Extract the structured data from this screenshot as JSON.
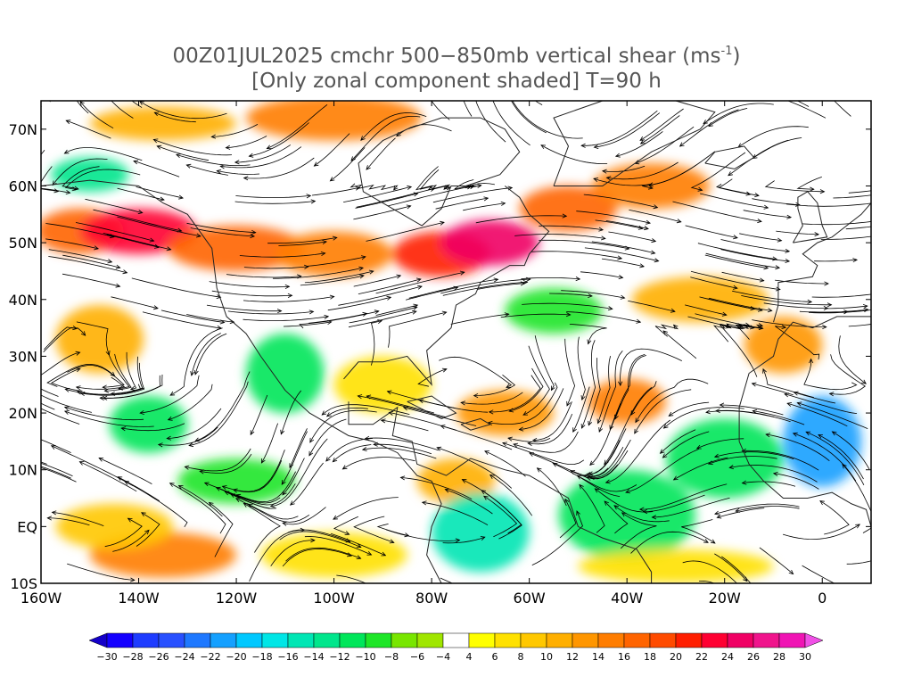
{
  "title": {
    "line1": "00Z01JUL2025 cmchr 500−850mb vertical shear (ms",
    "line1_sup": "-1",
    "line1_end": ")",
    "line2": "[Only zonal component shaded] T=90 h"
  },
  "lat_labels": [
    "70N",
    "60N",
    "50N",
    "40N",
    "30N",
    "20N",
    "10N",
    "EQ",
    "10S"
  ],
  "lat_values": [
    70,
    60,
    50,
    40,
    30,
    20,
    10,
    0,
    -10
  ],
  "lon_labels": [
    "160W",
    "140W",
    "120W",
    "100W",
    "80W",
    "60W",
    "40W",
    "20W",
    "0"
  ],
  "lon_values": [
    -160,
    -140,
    -120,
    -100,
    -80,
    -60,
    -40,
    -20,
    0
  ],
  "map_extent": {
    "lon_min": -160,
    "lon_max": 10,
    "lat_min": -10,
    "lat_max": 75
  },
  "colorbar": {
    "labels": [
      "−30",
      "−28",
      "−26",
      "−24",
      "−22",
      "−20",
      "−18",
      "−16",
      "−14",
      "−12",
      "−10",
      "−8",
      "−6",
      "−4",
      "4",
      "6",
      "8",
      "10",
      "12",
      "14",
      "16",
      "18",
      "20",
      "22",
      "24",
      "26",
      "28",
      "30"
    ],
    "colors": [
      "#1400ff",
      "#1e3cff",
      "#2850ff",
      "#1e78ff",
      "#14a0ff",
      "#00c8ff",
      "#00e6e6",
      "#00e6b4",
      "#00e68c",
      "#00e65a",
      "#1ee628",
      "#78e600",
      "#a0e600",
      "#ffffff",
      "#ffff00",
      "#ffe100",
      "#ffc800",
      "#ffaf00",
      "#ff9600",
      "#ff7d00",
      "#ff6400",
      "#ff4b00",
      "#ff1e00",
      "#ff0032",
      "#f00064",
      "#f0148c",
      "#f014b4"
    ],
    "low_color": "#1400c8",
    "high_color": "#f050e6"
  },
  "shading_regions": [
    {
      "lon": -152,
      "lat": 52,
      "rx": 9,
      "ry": 4,
      "value": 18
    },
    {
      "lon": -140,
      "lat": 52,
      "rx": 12,
      "ry": 4,
      "value": 24
    },
    {
      "lon": -120,
      "lat": 49,
      "rx": 14,
      "ry": 4,
      "value": 18
    },
    {
      "lon": -100,
      "lat": 48,
      "rx": 12,
      "ry": 4,
      "value": 16
    },
    {
      "lon": -78,
      "lat": 48,
      "rx": 10,
      "ry": 4,
      "value": 22
    },
    {
      "lon": -68,
      "lat": 50,
      "rx": 10,
      "ry": 4,
      "value": 26
    },
    {
      "lon": -52,
      "lat": 56,
      "rx": 10,
      "ry": 4,
      "value": 18
    },
    {
      "lon": -35,
      "lat": 60,
      "rx": 12,
      "ry": 4,
      "value": 16
    },
    {
      "lon": -100,
      "lat": 72,
      "rx": 18,
      "ry": 4,
      "value": 16
    },
    {
      "lon": -135,
      "lat": 71,
      "rx": 15,
      "ry": 3,
      "value": 12
    },
    {
      "lon": -150,
      "lat": 62,
      "rx": 8,
      "ry": 3,
      "value": -12
    },
    {
      "lon": -148,
      "lat": 33,
      "rx": 9,
      "ry": 6,
      "value": 12
    },
    {
      "lon": -138,
      "lat": 18,
      "rx": 8,
      "ry": 5,
      "value": -10
    },
    {
      "lon": -110,
      "lat": 27,
      "rx": 8,
      "ry": 7,
      "value": -10
    },
    {
      "lon": -65,
      "lat": 20,
      "rx": 10,
      "ry": 4,
      "value": 14
    },
    {
      "lon": -40,
      "lat": 22,
      "rx": 8,
      "ry": 4,
      "value": 16
    },
    {
      "lon": -25,
      "lat": 40,
      "rx": 14,
      "ry": 4,
      "value": 12
    },
    {
      "lon": -8,
      "lat": 32,
      "rx": 8,
      "ry": 5,
      "value": 14
    },
    {
      "lon": 0,
      "lat": 15,
      "rx": 8,
      "ry": 8,
      "value": -20
    },
    {
      "lon": -20,
      "lat": 12,
      "rx": 12,
      "ry": 7,
      "value": -10
    },
    {
      "lon": -75,
      "lat": 8,
      "rx": 8,
      "ry": 4,
      "value": 12
    },
    {
      "lon": -70,
      "lat": -1,
      "rx": 10,
      "ry": 7,
      "value": -14
    },
    {
      "lon": -40,
      "lat": 2,
      "rx": 14,
      "ry": 8,
      "value": -10
    },
    {
      "lon": -120,
      "lat": 8,
      "rx": 12,
      "ry": 4,
      "value": -8
    },
    {
      "lon": -135,
      "lat": -5,
      "rx": 15,
      "ry": 4,
      "value": 16
    },
    {
      "lon": -145,
      "lat": 0,
      "rx": 12,
      "ry": 4,
      "value": 10
    },
    {
      "lon": -100,
      "lat": -5,
      "rx": 15,
      "ry": 4,
      "value": 8
    },
    {
      "lon": -30,
      "lat": -7,
      "rx": 20,
      "ry": 3,
      "value": 8
    },
    {
      "lon": -90,
      "lat": 25,
      "rx": 10,
      "ry": 5,
      "value": 8
    },
    {
      "lon": -55,
      "lat": 38,
      "rx": 10,
      "ry": 4,
      "value": -8
    }
  ]
}
